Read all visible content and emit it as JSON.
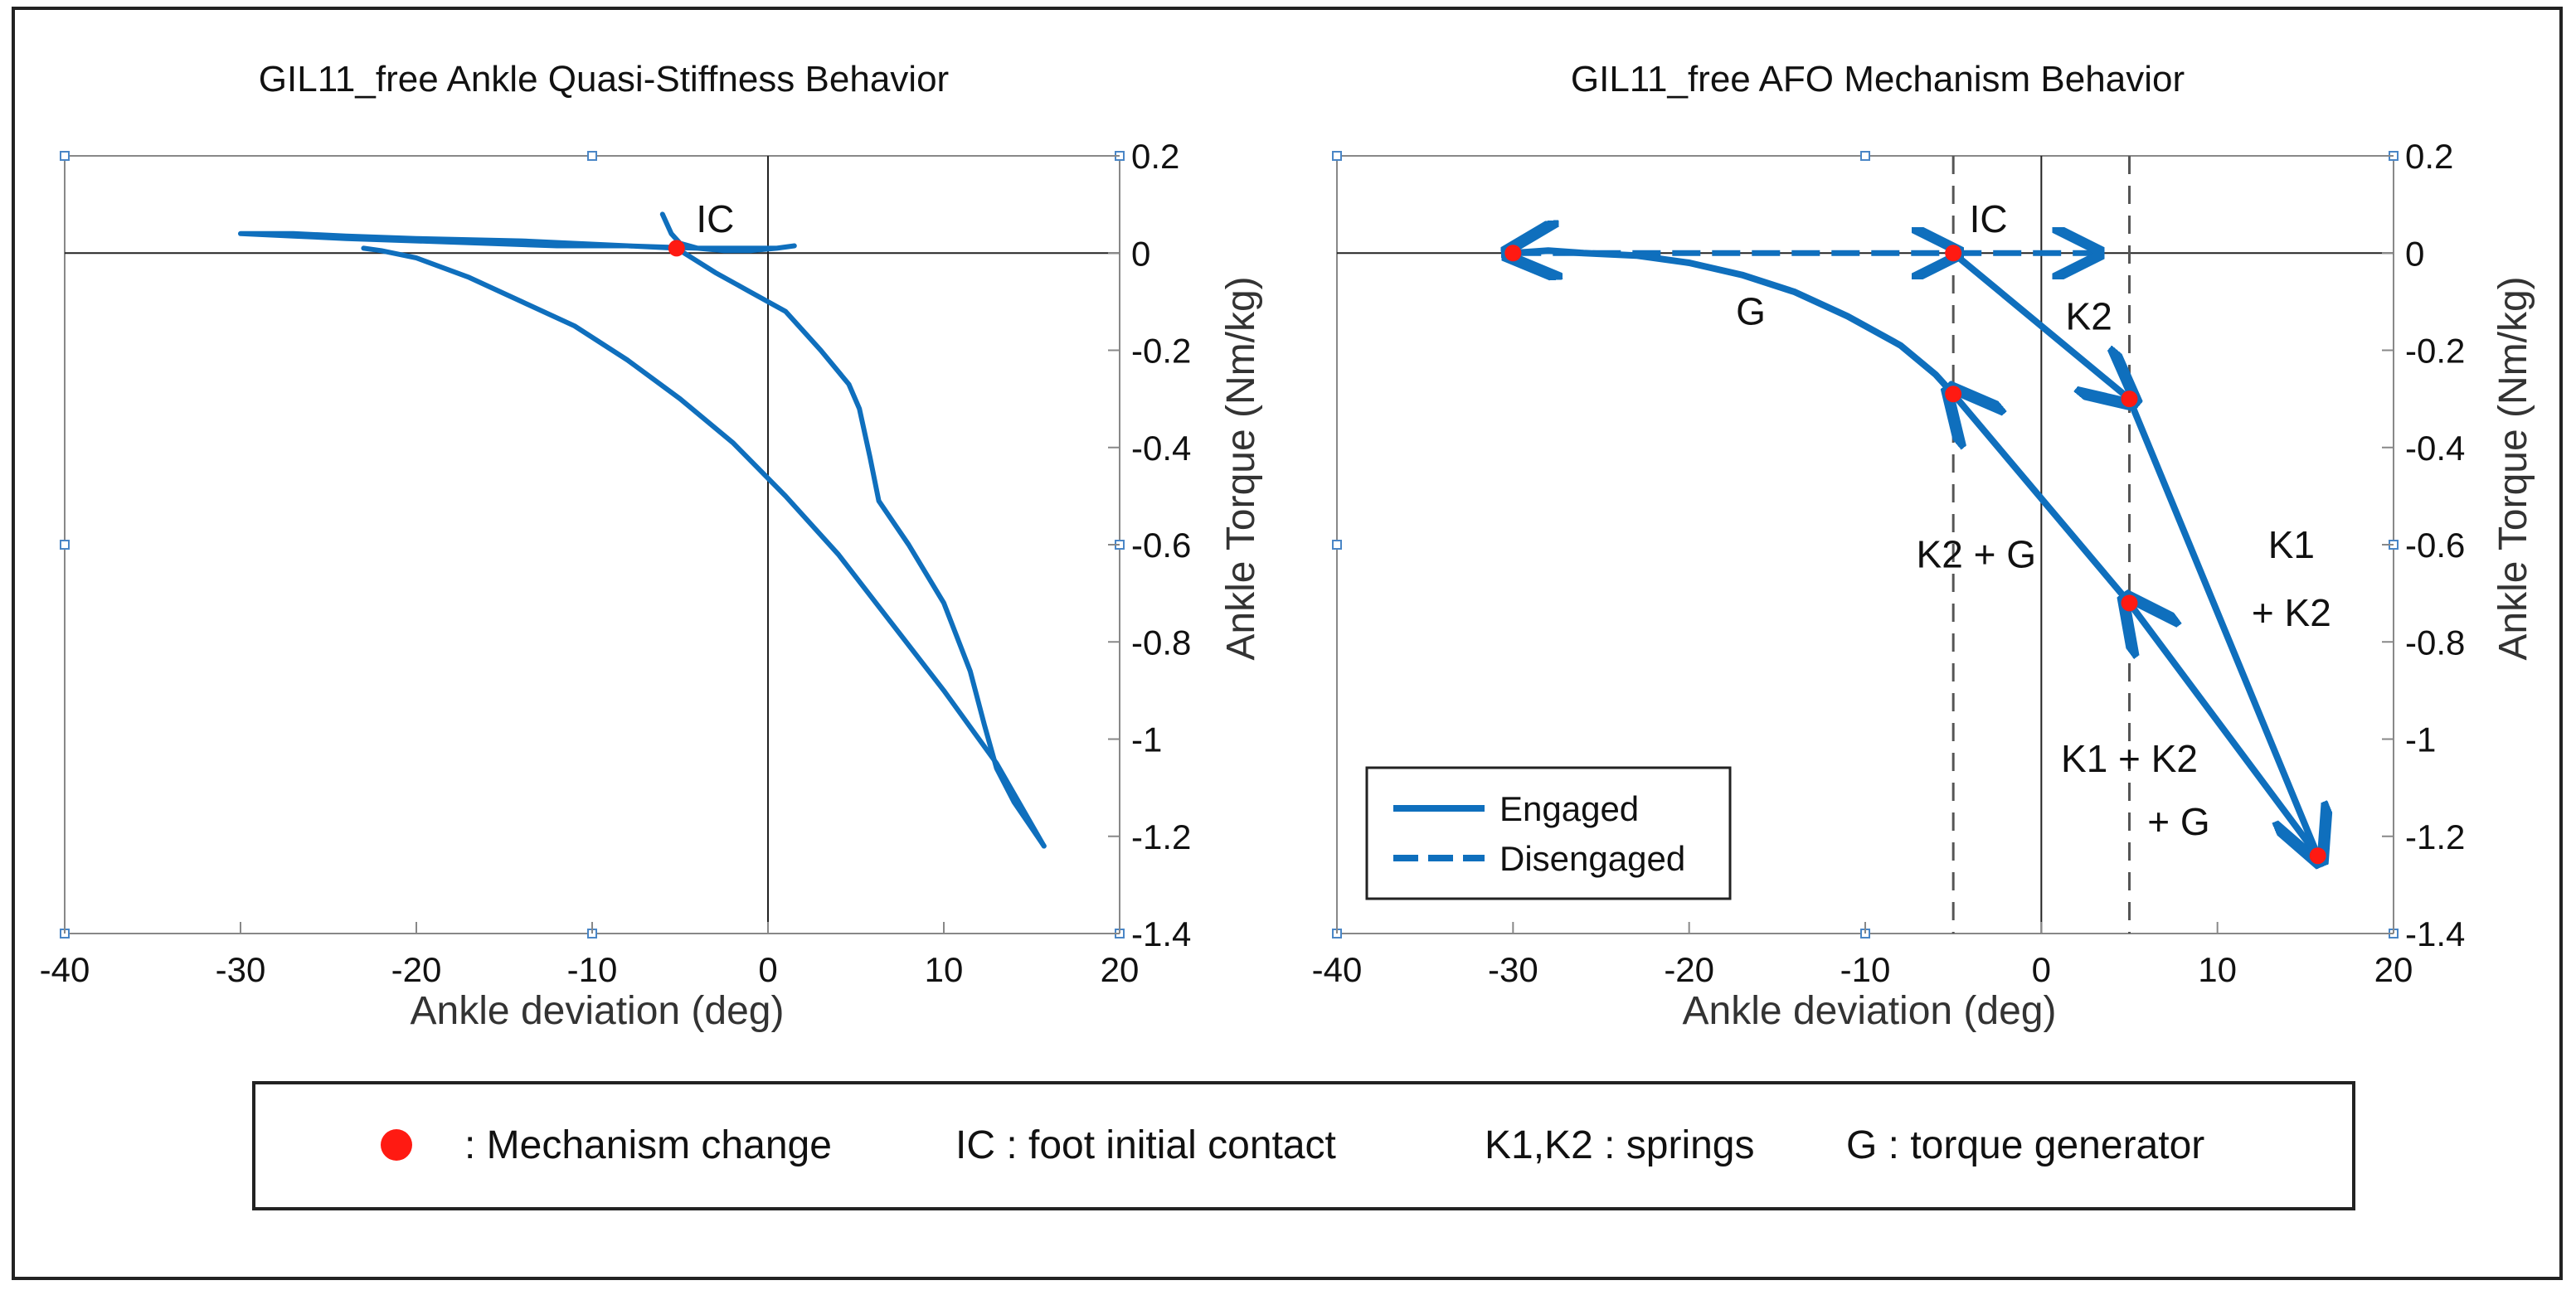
{
  "colors": {
    "curve": "#0f6fbd",
    "marker": "#ff1a12",
    "axis": "#888888",
    "text": "#111111",
    "dashline": "#555555"
  },
  "chart_data": [
    {
      "type": "line",
      "title": "GIL11_free Ankle Quasi-Stiffness Behavior",
      "xlabel": "Ankle deviation (deg)",
      "ylabel": "Ankle Torque (Nm/kg)",
      "xlim": [
        -40,
        20
      ],
      "ylim": [
        -1.4,
        0.2
      ],
      "xticks": [
        "-40",
        "-30",
        "-20",
        "-10",
        "0",
        "10",
        "20"
      ],
      "yticks": [
        "0.2",
        "0",
        "-0.2",
        "-0.4",
        "-0.6",
        "-0.8",
        "-1",
        "-1.2",
        "-1.4"
      ],
      "y_axis_side": "right",
      "series": [
        {
          "x": [
            -6,
            -5.5,
            -5,
            -4,
            -2.5,
            -1,
            0.5,
            1.5,
            0.5,
            -1.5,
            -4,
            -8,
            -12,
            -16,
            -20,
            -24,
            -27,
            -30,
            -27,
            -24,
            -20,
            -14,
            -8,
            -5.2,
            -3,
            -1,
            1,
            3,
            4.6,
            5.2,
            5.8,
            6.3,
            8,
            10,
            11.5,
            12.3,
            13,
            14,
            15.7
          ],
          "y": [
            0.08,
            0.04,
            0.02,
            0.01,
            0.005,
            0.005,
            0.01,
            0.015,
            0.01,
            0.01,
            0.01,
            0.015,
            0.015,
            0.02,
            0.025,
            0.03,
            0.035,
            0.04,
            0.04,
            0.035,
            0.03,
            0.025,
            0.015,
            0.01,
            -0.04,
            -0.08,
            -0.12,
            -0.2,
            -0.27,
            -0.32,
            -0.42,
            -0.51,
            -0.6,
            -0.72,
            -0.86,
            -0.97,
            -1.06,
            -1.13,
            -1.22
          ]
        },
        {
          "x": [
            15.7,
            13,
            10,
            7,
            4,
            1,
            -2,
            -5,
            -8,
            -11,
            -14,
            -17,
            -20,
            -22,
            -23
          ],
          "y": [
            -1.22,
            -1.05,
            -0.9,
            -0.76,
            -0.62,
            -0.5,
            -0.39,
            -0.3,
            -0.22,
            -0.15,
            -0.1,
            -0.05,
            -0.01,
            0.005,
            0.01
          ]
        }
      ],
      "markers": [
        {
          "x": -5.2,
          "y": 0.01
        }
      ],
      "annotations": [
        {
          "text": "IC",
          "x": -3,
          "y": 0.07
        }
      ]
    },
    {
      "type": "line",
      "title": "GIL11_free AFO Mechanism Behavior",
      "xlabel": "Ankle deviation (deg)",
      "ylabel": "Ankle Torque (Nm/kg)",
      "xlim": [
        -40,
        20
      ],
      "ylim": [
        -1.4,
        0.2
      ],
      "xticks": [
        "-40",
        "-30",
        "-20",
        "-10",
        "0",
        "10",
        "20"
      ],
      "yticks": [
        "0.2",
        "0",
        "-0.2",
        "-0.4",
        "-0.6",
        "-0.8",
        "-1",
        "-1.2",
        "-1.4"
      ],
      "y_axis_side": "right",
      "vertical_dashed_lines_x": [
        -5,
        5
      ],
      "engaged_segments": [
        {
          "x": [
            -5,
            5
          ],
          "y": [
            0,
            -0.3
          ]
        },
        {
          "x": [
            5,
            15.7
          ],
          "y": [
            -0.3,
            -1.24
          ]
        },
        {
          "x": [
            15.7,
            5
          ],
          "y": [
            -1.24,
            -0.72
          ]
        },
        {
          "x": [
            5,
            -5
          ],
          "y": [
            -0.72,
            -0.29
          ]
        },
        {
          "x": [
            -5,
            -6,
            -8,
            -11,
            -14,
            -17,
            -20,
            -23,
            -26,
            -28,
            -30
          ],
          "y": [
            -0.29,
            -0.25,
            -0.19,
            -0.13,
            -0.08,
            -0.045,
            -0.02,
            -0.005,
            0,
            0.005,
            0
          ]
        }
      ],
      "disengaged_segments": [
        {
          "x": [
            -30,
            -5
          ],
          "y": [
            0,
            0
          ]
        },
        {
          "x": [
            -5,
            3
          ],
          "y": [
            0,
            0
          ]
        }
      ],
      "markers": [
        {
          "x": -30,
          "y": 0
        },
        {
          "x": -5,
          "y": 0
        },
        {
          "x": 5,
          "y": -0.3
        },
        {
          "x": -5,
          "y": -0.29
        },
        {
          "x": 5,
          "y": -0.72
        },
        {
          "x": 15.7,
          "y": -1.24
        }
      ],
      "annotations": [
        {
          "text": "IC",
          "x": -3,
          "y": 0.07
        },
        {
          "text": "G",
          "x": -16.5,
          "y": -0.12
        },
        {
          "text": "K2",
          "x": 2.7,
          "y": -0.13
        },
        {
          "text": "K2 + G",
          "x": -3.7,
          "y": -0.62
        },
        {
          "text": "K1",
          "x": 14.2,
          "y": -0.6
        },
        {
          "text": "+ K2",
          "x": 14.2,
          "y": -0.74
        },
        {
          "text": "K1 + K2",
          "x": 5,
          "y": -1.04
        },
        {
          "text": "+ G",
          "x": 7.8,
          "y": -1.17
        }
      ],
      "legend": {
        "placement": "bottom-left",
        "items": [
          "Engaged",
          "Disengaged"
        ]
      }
    }
  ],
  "footer_legend": {
    "mechanism_change": ": Mechanism change",
    "ic": "IC : foot initial contact",
    "springs": "K1,K2 : springs",
    "generator": "G : torque generator"
  }
}
